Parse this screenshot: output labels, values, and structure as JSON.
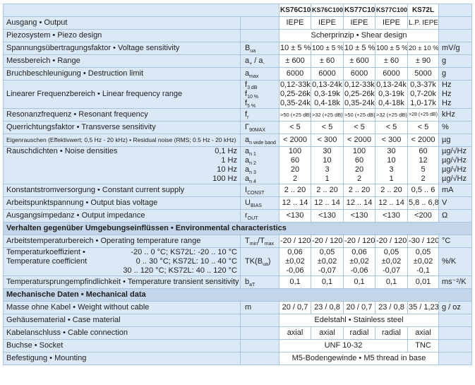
{
  "header": {
    "models": [
      "KS76C10",
      "KS76C100",
      "KS77C10",
      "KS77C100",
      "KS72L"
    ]
  },
  "rows": [
    {
      "label": [
        "Ausgang • Output"
      ],
      "values": [
        "IEPE",
        "IEPE",
        "IEPE",
        "IEPE",
        "L.P. IEPE"
      ]
    },
    {
      "label": [
        "Piezosystem • Piezo design"
      ],
      "values": [
        "Scherprinzip • Shear design"
      ]
    },
    {
      "label": [
        "Spannungsübertragungsfaktor • Voltage sensitivity"
      ],
      "symbol": [
        [
          [
            "B",
            "ua"
          ]
        ]
      ],
      "values": [
        "10 ± 5 %",
        "100 ± 5 %",
        "10 ± 5 %",
        "100 ± 5 %",
        "20 ± 10 %"
      ],
      "unit": [
        "mV/g"
      ]
    },
    {
      "label": [
        "Messbereich • Range"
      ],
      "symbol": [
        [
          [
            "a",
            "+"
          ],
          [
            " / a",
            "-"
          ]
        ]
      ],
      "values": [
        "± 600",
        "± 60",
        "± 600",
        "± 60",
        "± 90"
      ],
      "unit": [
        "g"
      ]
    },
    {
      "label": [
        "Bruchbeschleunigung • Destruction limit"
      ],
      "symbol": [
        [
          [
            "a",
            "max"
          ]
        ]
      ],
      "values": [
        "6000",
        "6000",
        "6000",
        "6000",
        "5000"
      ],
      "unit": [
        "g"
      ]
    },
    {
      "label": [
        "Linearer Frequenzbereich • Linear frequency range"
      ],
      "symbol": [
        [
          [
            "f",
            "3 dB"
          ]
        ],
        [
          [
            "f",
            "10 %"
          ]
        ],
        [
          [
            "f",
            "5 %"
          ]
        ]
      ],
      "values": [
        [
          "0,12-33k",
          "0,25-26k",
          "0,35-24k"
        ],
        [
          "0,13-24k",
          "0,3-19k",
          "0,4-18k"
        ],
        [
          "0,12-33k",
          "0,25-26k",
          "0,35-24k"
        ],
        [
          "0,13-24k",
          "0,3-19k",
          "0,4-18k"
        ],
        [
          "0,3-37k",
          "0,7-20k",
          "1,0-17k"
        ]
      ],
      "unit": [
        "Hz",
        "Hz",
        "Hz"
      ]
    },
    {
      "label": [
        "Resonanzfrequenz • Resonant frequency"
      ],
      "symbol": [
        [
          [
            "f",
            "r"
          ]
        ]
      ],
      "values": [
        ">50 (+25 dB)",
        ">32 (+25 dB)",
        ">50 (+25 dB)",
        ">32 (+25 dB)",
        ">28 (+25 dB)"
      ],
      "unit": [
        "kHz"
      ]
    },
    {
      "label": [
        "Querrichtungsfaktor • Transverse sensitivity"
      ],
      "symbol": [
        [
          [
            "Γ",
            "90MAX"
          ]
        ]
      ],
      "values": [
        "< 5",
        "< 5",
        "< 5",
        "< 5",
        "< 5"
      ],
      "unit": [
        "%"
      ]
    },
    {
      "label": [
        "Eigenrauschen (Effektivwert; 0,5 Hz - 20 kHz) • Residual noise (RMS; 0.5 Hz - 20 kHz)"
      ],
      "symbol": [
        [
          [
            "a",
            "n wide band"
          ]
        ]
      ],
      "values": [
        "< 2000",
        "< 300",
        "< 2000",
        "< 300",
        "< 2000"
      ],
      "unit": [
        "µg"
      ]
    },
    {
      "label": [
        "Rauschdichten • Noise densities"
      ],
      "conditions": [
        "0,1 Hz",
        "1 Hz",
        "10 Hz",
        "100 Hz"
      ],
      "symbol": [
        [
          [
            "a",
            "n 1"
          ]
        ],
        [
          [
            "a",
            "n 2"
          ]
        ],
        [
          [
            "a",
            "n 3"
          ]
        ],
        [
          [
            "a",
            "n 4"
          ]
        ]
      ],
      "values": [
        [
          "100",
          "60",
          "20",
          "2"
        ],
        [
          "30",
          "10",
          "3",
          "1"
        ],
        [
          "100",
          "60",
          "20",
          "2"
        ],
        [
          "30",
          "10",
          "3",
          "1"
        ],
        [
          "60",
          "12",
          "5",
          "2"
        ]
      ],
      "unit": [
        "µg/√Hz",
        "µg/√Hz",
        "µg/√Hz",
        "µg/√Hz"
      ]
    },
    {
      "label": [
        "Konstantstromversorgung • Constant current supply"
      ],
      "symbol": [
        [
          [
            "I",
            "CONST"
          ]
        ]
      ],
      "values": [
        "2 .. 20",
        "2 .. 20",
        "2 .. 20",
        "2 .. 20",
        "0,5 .. 6"
      ],
      "unit": [
        "mA"
      ]
    },
    {
      "label": [
        "Arbeitspunktspannung • Output bias voltage"
      ],
      "symbol": [
        [
          [
            "U",
            "BIAS"
          ]
        ]
      ],
      "values": [
        "12 .. 14",
        "12 .. 14",
        "12 .. 14",
        "12 .. 14",
        "5,8 .. 6,8"
      ],
      "unit": [
        "V"
      ]
    },
    {
      "label": [
        "Ausgangsimpedanz • Output impedance"
      ],
      "symbol": [
        [
          [
            "r",
            "OUT"
          ]
        ]
      ],
      "values": [
        "<130",
        "<130",
        "<130",
        "<130",
        "<200"
      ],
      "unit": [
        "Ω"
      ]
    },
    {
      "section": "Verhalten gegenüber Umgebungseinflüssen • Environmental characteristics"
    },
    {
      "label": [
        "Arbeitstemperaturbereich • Operating temperature range"
      ],
      "symbol": [
        [
          [
            "T",
            "min"
          ],
          [
            "/T",
            "max"
          ]
        ]
      ],
      "values": [
        "-20 / 120",
        "-20 / 120",
        "-20 / 120",
        "-20 / 120",
        "-30 / 120"
      ],
      "unit": [
        "°C"
      ]
    },
    {
      "label": [
        "Temperaturkoeffizient •",
        "Temperature coefficient"
      ],
      "conditions": [
        "-20 .. 0 °C; KS72L:  -20 .. 10 °C",
        "0 .. 30 °C; KS72L:  10 .. 40 °C",
        "30 .. 120 °C; KS72L:  40 .. 120 °C"
      ],
      "symbol": [
        [
          [
            "TK(B",
            "ua"
          ],
          [
            ")",
            ""
          ]
        ]
      ],
      "values": [
        [
          "0,06",
          "±0,02",
          "-0,06"
        ],
        [
          "0,05",
          "±0,02",
          "-0,07"
        ],
        [
          "0,06",
          "±0,02",
          "-0,06"
        ],
        [
          "0,05",
          "±0,02",
          "-0,07"
        ],
        [
          "0,05",
          "±0,02",
          "-0,1"
        ]
      ],
      "unit": [
        "%/K"
      ]
    },
    {
      "label": [
        "Temperatursprungempfindlichkeit • Temperature transient sensitivity"
      ],
      "symbol": [
        [
          [
            "b",
            "aT"
          ]
        ]
      ],
      "values": [
        "0,1",
        "0,1",
        "0,1",
        "0,1",
        "0,01"
      ],
      "unit": [
        "ms⁻²/K"
      ]
    },
    {
      "section": "Mechanische Daten  • Mechanical data"
    },
    {
      "label": [
        "Masse ohne Kabel  • Weight without cable"
      ],
      "symbol": [
        [
          [
            "m",
            ""
          ]
        ]
      ],
      "values": [
        "20 / 0,7",
        "23 / 0,8",
        "20 / 0,7",
        "23 / 0,8",
        "35 / 1,23"
      ],
      "unit": [
        "g / oz"
      ]
    },
    {
      "label": [
        "Gehäusematerial  • Case material"
      ],
      "values": [
        "Edelstahl • Stainless steel"
      ]
    },
    {
      "label": [
        "Kabelanschluss  • Cable connection"
      ],
      "values": [
        "axial",
        "axial",
        "radial",
        "radial",
        "axial"
      ]
    },
    {
      "label": [
        "Buchse • Socket"
      ],
      "values": [
        "UNF 10-32",
        "TNC"
      ]
    },
    {
      "label": [
        "Befestigung • Mounting"
      ],
      "values": [
        "M5-Bodengewinde • M5 thread in base"
      ]
    }
  ]
}
